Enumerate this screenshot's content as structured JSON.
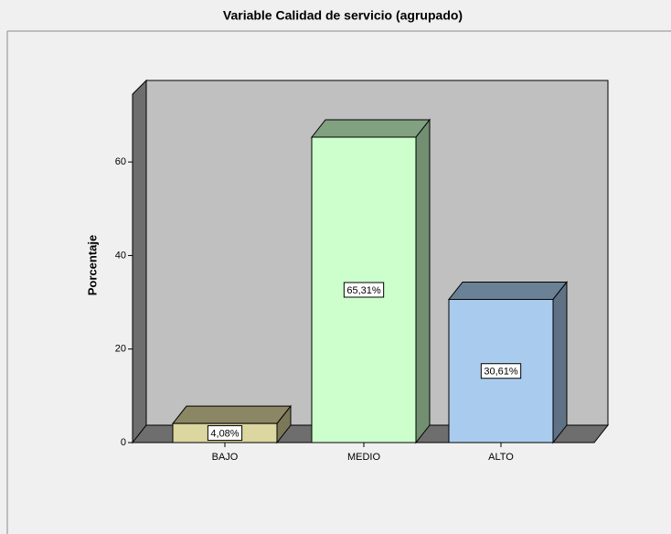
{
  "chart_data": {
    "type": "bar3d",
    "title": "Variable Calidad de servicio (agrupado)",
    "y_label": "Porcentaje",
    "categories": [
      "BAJO",
      "MEDIO",
      "ALTO"
    ],
    "values": [
      4.08,
      65.31,
      30.61
    ],
    "value_labels": [
      "4,08%",
      "65,31%",
      "30,61%"
    ],
    "colors": [
      "#dcd6a0",
      "#ccffcc",
      "#a9ccee"
    ],
    "ylim": [
      0,
      74.5
    ],
    "yticks": [
      0,
      20,
      40,
      60
    ]
  }
}
